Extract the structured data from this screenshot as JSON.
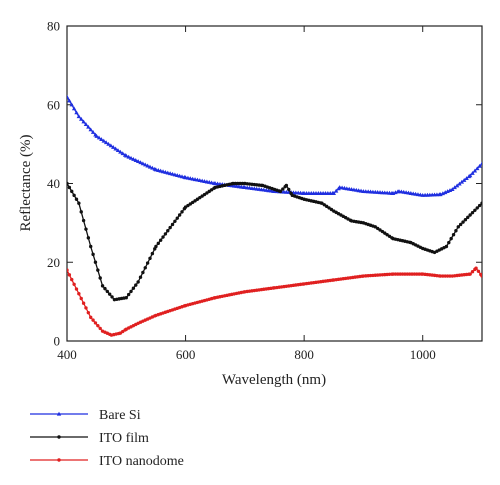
{
  "chart_data": {
    "type": "line",
    "xlabel": "Wavelength (nm)",
    "ylabel": "Reflectance (%)",
    "xlim": [
      400,
      1100
    ],
    "ylim": [
      0,
      80
    ],
    "x_ticks": [
      400,
      600,
      800,
      1000
    ],
    "y_ticks": [
      0,
      20,
      40,
      60,
      80
    ],
    "grid": false,
    "legend_position": "below",
    "series": [
      {
        "name": "Bare Si",
        "color": "#1f2fe0",
        "marker": "triangle",
        "x": [
          400,
          420,
          450,
          500,
          550,
          600,
          650,
          700,
          750,
          800,
          850,
          860,
          900,
          950,
          960,
          1000,
          1030,
          1050,
          1080,
          1100
        ],
        "y": [
          62,
          57,
          52,
          47,
          43.5,
          41.5,
          40,
          39,
          38,
          37.5,
          37.5,
          39,
          38,
          37.5,
          38,
          37,
          37.2,
          38.5,
          42,
          45
        ]
      },
      {
        "name": "ITO film",
        "color": "#111111",
        "marker": "dot",
        "x": [
          400,
          420,
          440,
          460,
          480,
          500,
          520,
          550,
          600,
          650,
          680,
          700,
          730,
          760,
          770,
          780,
          800,
          830,
          850,
          880,
          900,
          920,
          950,
          980,
          1000,
          1020,
          1040,
          1060,
          1080,
          1100
        ],
        "y": [
          40,
          35,
          24,
          14,
          10.5,
          11,
          15,
          24,
          34,
          39,
          40,
          40,
          39.5,
          38,
          39.5,
          37,
          36,
          35,
          33,
          30.5,
          30,
          29,
          26,
          25,
          23.5,
          22.5,
          24,
          29,
          32,
          35
        ]
      },
      {
        "name": "ITO nanodome",
        "color": "#e02020",
        "marker": "dot",
        "x": [
          400,
          420,
          440,
          460,
          475,
          490,
          500,
          520,
          550,
          600,
          650,
          700,
          750,
          800,
          850,
          900,
          950,
          1000,
          1030,
          1050,
          1080,
          1090,
          1100
        ],
        "y": [
          18,
          12,
          6,
          2.5,
          1.5,
          2,
          3,
          4.5,
          6.5,
          9,
          11,
          12.5,
          13.5,
          14.5,
          15.5,
          16.5,
          17,
          17,
          16.5,
          16.5,
          17,
          18.5,
          16.5
        ]
      }
    ]
  }
}
